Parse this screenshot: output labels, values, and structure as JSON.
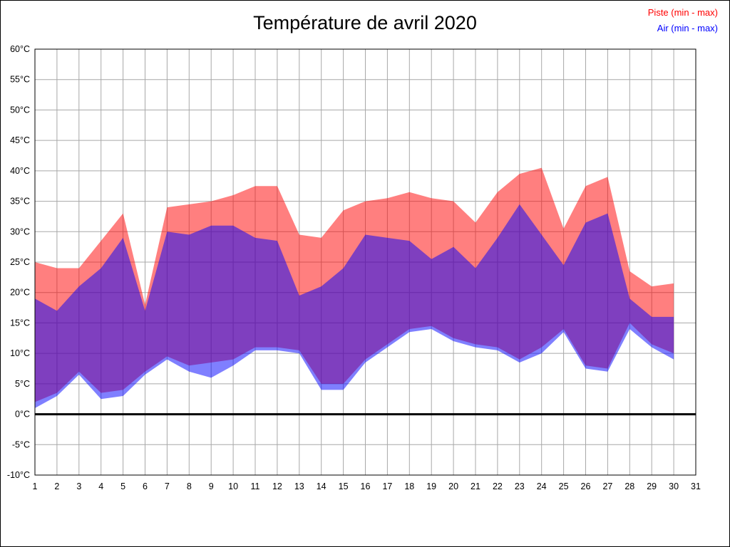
{
  "title": "Température de avril 2020",
  "legend": [
    {
      "label": "Piste (min - max)",
      "color": "#ff0000"
    },
    {
      "label": "Air (min - max)",
      "color": "#0000ff"
    }
  ],
  "chart_data": {
    "type": "area",
    "subtype": "min-max range bands (two overlapping translucent series)",
    "title": "Température de avril 2020",
    "xlim": [
      1,
      31
    ],
    "ylim": [
      -10,
      60
    ],
    "ytick_step": 5,
    "ytick_suffix": "°C",
    "grid": true,
    "zero_line": true,
    "legend_position": "top-right",
    "categories": [
      1,
      2,
      3,
      4,
      5,
      6,
      7,
      8,
      9,
      10,
      11,
      12,
      13,
      14,
      15,
      16,
      17,
      18,
      19,
      20,
      21,
      22,
      23,
      24,
      25,
      26,
      27,
      28,
      29,
      30,
      31
    ],
    "days": [
      1,
      2,
      3,
      4,
      5,
      6,
      7,
      8,
      9,
      10,
      11,
      12,
      13,
      14,
      15,
      16,
      17,
      18,
      19,
      20,
      21,
      22,
      23,
      24,
      25,
      26,
      27,
      28,
      29,
      30
    ],
    "series": [
      {
        "name": "Piste (min - max)",
        "data_name": "piste-band",
        "fill": "rgba(255,0,0,0.5)",
        "max": [
          25,
          24,
          24,
          28.5,
          33,
          18,
          34,
          34.5,
          35,
          36,
          37.5,
          37.5,
          29.5,
          29,
          33.5,
          35,
          35.5,
          36.5,
          35.5,
          35,
          31.5,
          36.5,
          39.5,
          40.5,
          30.5,
          37.5,
          39,
          23.5,
          21,
          21.5
        ],
        "min": [
          2,
          3.5,
          7,
          3.5,
          4,
          7,
          9.5,
          8,
          8.5,
          9,
          11,
          11,
          10.5,
          5,
          5,
          9,
          11.5,
          14,
          14.5,
          12.5,
          11.5,
          11,
          9,
          11,
          14,
          8,
          7.5,
          15,
          11.5,
          10
        ]
      },
      {
        "name": "Air (min - max)",
        "data_name": "air-band",
        "fill": "rgba(0,0,255,0.5)",
        "max": [
          19,
          17,
          21,
          24,
          29,
          17,
          30,
          29.5,
          31,
          31,
          29,
          28.5,
          19.5,
          21,
          24,
          29.5,
          29,
          28.5,
          25.5,
          27.5,
          24,
          29,
          34.5,
          29.5,
          24.5,
          31.5,
          33,
          19,
          16,
          16
        ],
        "min": [
          1,
          3,
          6.5,
          2.5,
          3,
          6.5,
          9,
          7,
          6,
          8,
          10.5,
          10.5,
          10,
          4,
          4,
          8.5,
          11,
          13.5,
          14,
          12,
          11,
          10.5,
          8.5,
          10,
          13.5,
          7.5,
          7,
          14,
          11,
          9
        ]
      }
    ]
  }
}
